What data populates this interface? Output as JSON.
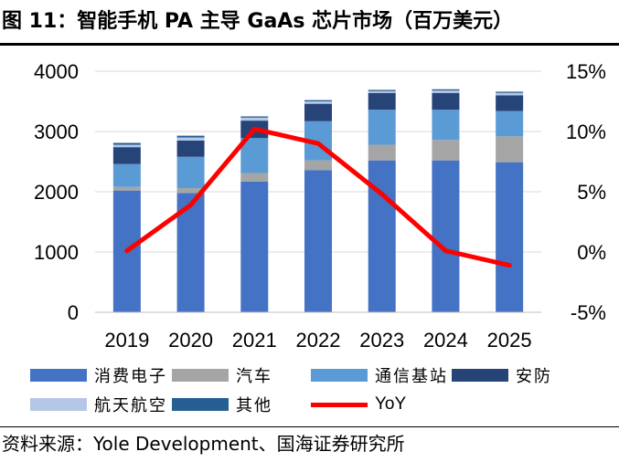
{
  "header": {
    "title": "图 11：智能手机 PA 主导 GaAs 芯片市场（百万美元）"
  },
  "footer": {
    "source": "资料来源：Yole Development、国海证券研究所"
  },
  "chart_data": {
    "type": "bar",
    "stacked": true,
    "title": "智能手机 PA 主导 GaAs 芯片市场（百万美元）",
    "categories": [
      "2019",
      "2020",
      "2021",
      "2022",
      "2023",
      "2024",
      "2025"
    ],
    "ylim": [
      0,
      4000
    ],
    "yticks": [
      "0",
      "1000",
      "2000",
      "3000",
      "4000"
    ],
    "y2lim": [
      -5,
      15
    ],
    "y2ticks": [
      "-5%",
      "0%",
      "5%",
      "10%",
      "15%"
    ],
    "series": [
      {
        "name": "消费电子",
        "color": "#4472C4",
        "values": [
          2020,
          1980,
          2170,
          2360,
          2520,
          2520,
          2490
        ]
      },
      {
        "name": "汽车",
        "color": "#A5A5A5",
        "values": [
          60,
          80,
          140,
          160,
          260,
          340,
          430
        ]
      },
      {
        "name": "通信基站",
        "color": "#5B9BD5",
        "values": [
          380,
          520,
          580,
          650,
          580,
          500,
          420
        ]
      },
      {
        "name": "安防",
        "color": "#264478",
        "values": [
          280,
          270,
          290,
          290,
          280,
          280,
          260
        ]
      },
      {
        "name": "航天航空",
        "color": "#B4C7E7",
        "values": [
          40,
          50,
          50,
          40,
          30,
          40,
          40
        ]
      },
      {
        "name": "其他",
        "color": "#255E91",
        "values": [
          30,
          30,
          20,
          20,
          20,
          20,
          20
        ]
      }
    ],
    "line_series": {
      "name": "YoY",
      "color": "#FF0000",
      "axis": "right",
      "values": [
        0.1,
        3.9,
        10.2,
        9.0,
        4.8,
        0.1,
        -1.1
      ]
    }
  }
}
